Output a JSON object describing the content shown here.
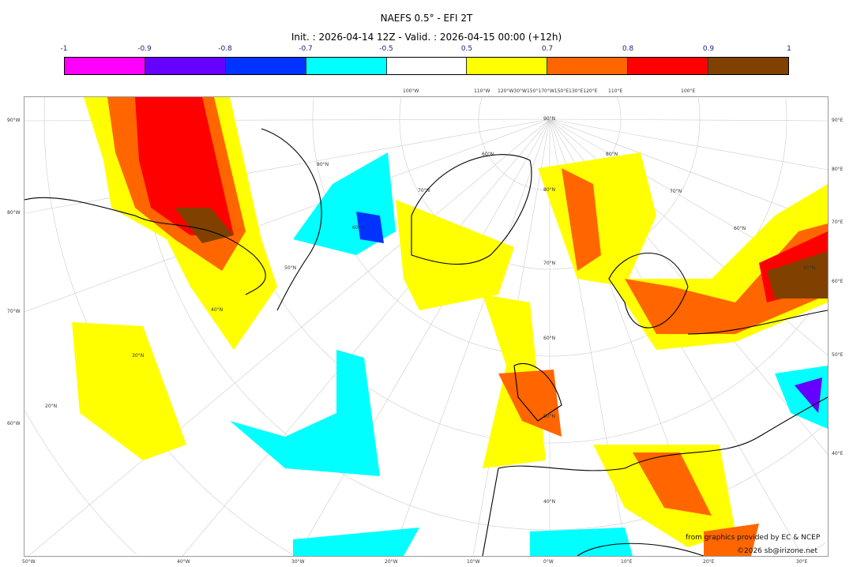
{
  "title": "NAEFS 0.5° - EFI 2T",
  "subtitle": "Init. : 2026-04-14 12Z - Valid. : 2026-04-15 00:00 (+12h)",
  "colorbar": {
    "ticks": [
      "-1",
      "-0.9",
      "-0.8",
      "-0.7",
      "-0.5",
      "0.5",
      "0.7",
      "0.8",
      "0.9",
      "1"
    ],
    "colors": [
      "#ff00ff",
      "#6600ff",
      "#0033ff",
      "#00ffff",
      "#ffffff",
      "#ffff00",
      "#ff6600",
      "#ff0000",
      "#804000"
    ]
  },
  "axes": {
    "left": [
      "90°W",
      "80°W",
      "70°W",
      "60°W"
    ],
    "right": [
      "90°E",
      "80°E",
      "70°E",
      "60°E",
      "50°E",
      "40°E"
    ],
    "bottom": [
      "50°W",
      "40°W",
      "30°W",
      "20°W",
      "10°W",
      "0°W",
      "10°E",
      "20°E",
      "30°E"
    ],
    "top": [
      "100°W",
      "110°W",
      "120°W30°W150°170°W150°E130°E120°E",
      "110°E",
      "100°E"
    ],
    "lat_labels": [
      "80°N",
      "70°N",
      "60°N",
      "50°N",
      "40°N",
      "30°N",
      "20°N",
      "90°N",
      "80°N",
      "70°N",
      "60°N",
      "50°N",
      "40°N",
      "70°N",
      "60°N",
      "50°N",
      "80°N",
      "60°N"
    ]
  },
  "credits": {
    "source": "from graphics provided by EC & NCEP",
    "copyright": "©2026 sb@irizone.net"
  }
}
